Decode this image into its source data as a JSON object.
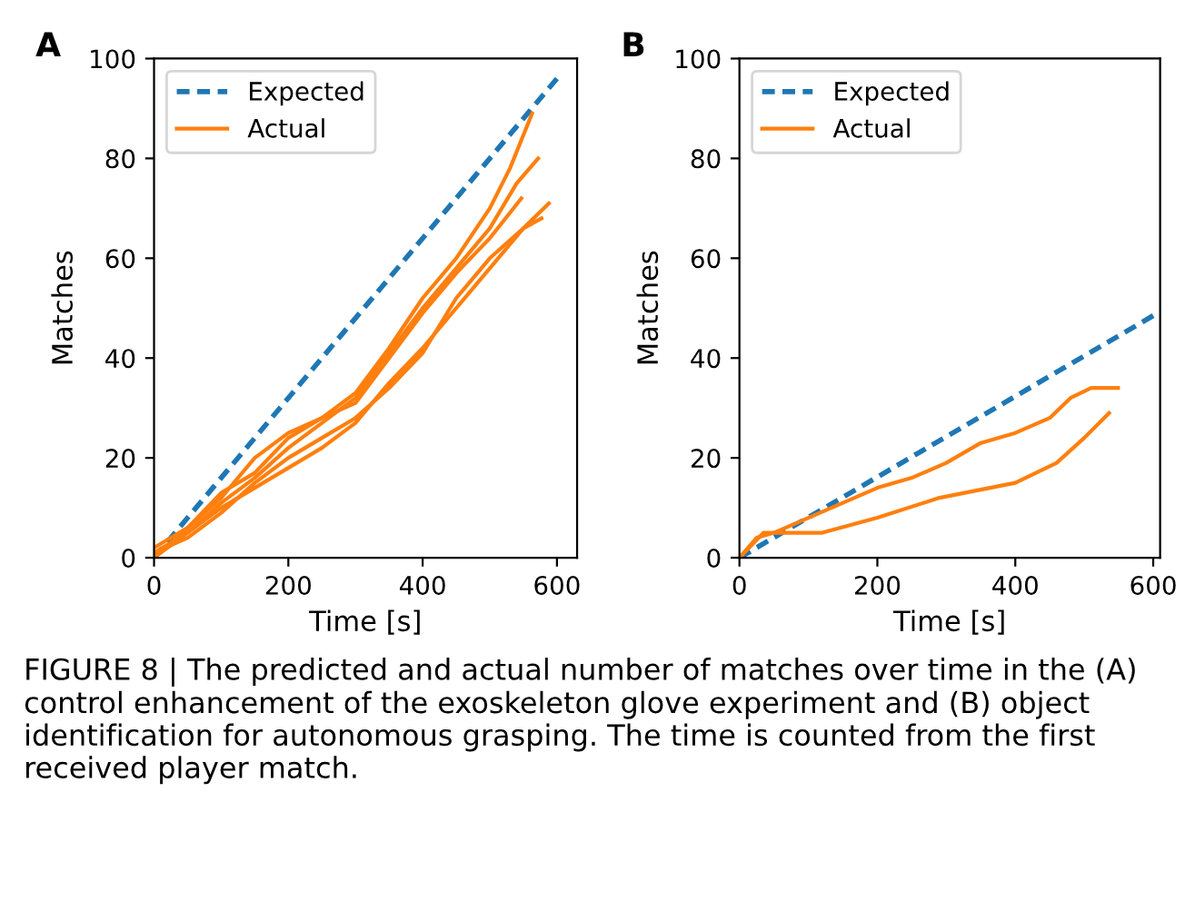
{
  "chart_data": [
    {
      "type": "line",
      "title": "A",
      "xlabel": "Time [s]",
      "ylabel": "Matches",
      "xlim": [
        0,
        630
      ],
      "ylim": [
        0,
        100
      ],
      "xticks": [
        0,
        200,
        400,
        600
      ],
      "yticks": [
        0,
        20,
        40,
        60,
        80,
        100
      ],
      "grid": false,
      "legend": "top left",
      "series": [
        {
          "name": "Expected",
          "color": "#1f77b4",
          "line_style": "dashed",
          "x": [
            0,
            600
          ],
          "values": [
            0,
            96
          ]
        },
        {
          "name": "Actual",
          "color": "#ff7f0e",
          "line_style": "solid",
          "x": [
            0,
            50,
            100,
            150,
            200,
            250,
            300,
            350,
            400,
            450,
            500,
            530,
            563
          ],
          "values": [
            0,
            6,
            12,
            20,
            25,
            28,
            33,
            42,
            52,
            60,
            70,
            78,
            89
          ]
        },
        {
          "color": "#ff7f0e",
          "line_style": "solid",
          "x": [
            0,
            50,
            100,
            150,
            200,
            250,
            300,
            350,
            400,
            450,
            500,
            540,
            572
          ],
          "values": [
            1,
            5,
            11,
            16,
            22,
            27,
            32,
            41,
            50,
            58,
            66,
            75,
            80
          ]
        },
        {
          "color": "#ff7f0e",
          "line_style": "solid",
          "x": [
            0,
            50,
            100,
            150,
            200,
            250,
            300,
            350,
            400,
            450,
            500,
            547
          ],
          "values": [
            2,
            6,
            13,
            17,
            24,
            28,
            31,
            40,
            49,
            57,
            64,
            72
          ]
        },
        {
          "color": "#ff7f0e",
          "line_style": "solid",
          "x": [
            0,
            50,
            100,
            150,
            200,
            250,
            300,
            350,
            400,
            450,
            500,
            550,
            588
          ],
          "values": [
            0,
            5,
            10,
            14,
            18,
            22,
            27,
            35,
            42,
            50,
            58,
            66,
            71
          ]
        },
        {
          "color": "#ff7f0e",
          "line_style": "solid",
          "x": [
            0,
            50,
            100,
            150,
            200,
            250,
            300,
            350,
            400,
            450,
            500,
            550,
            577
          ],
          "values": [
            1,
            4,
            9,
            15,
            20,
            24,
            28,
            34,
            41,
            52,
            60,
            66,
            68
          ]
        }
      ],
      "annotations": [
        "FIGURE 8 | The predicted and actual number of matches over time in the (A) control enhancement of the exoskeleton glove experiment and (B) object identification for autonomous grasping. The time is counted from the first received player match."
      ]
    },
    {
      "type": "line",
      "title": "B",
      "xlabel": "Time [s]",
      "ylabel": "Matches",
      "xlim": [
        0,
        610
      ],
      "ylim": [
        0,
        100
      ],
      "xticks": [
        0,
        200,
        400,
        600
      ],
      "yticks": [
        0,
        20,
        40,
        60,
        80,
        100
      ],
      "grid": false,
      "legend": "top left",
      "series": [
        {
          "name": "Expected",
          "color": "#1f77b4",
          "line_style": "dashed",
          "x": [
            0,
            600
          ],
          "values": [
            0,
            48.5
          ]
        },
        {
          "name": "Actual",
          "color": "#ff7f0e",
          "line_style": "solid",
          "x": [
            0,
            25,
            50,
            100,
            150,
            200,
            250,
            300,
            350,
            400,
            450,
            480,
            510,
            549
          ],
          "values": [
            0,
            4,
            5,
            8,
            11,
            14,
            16,
            19,
            23,
            25,
            28,
            32,
            34,
            34
          ]
        },
        {
          "color": "#ff7f0e",
          "line_style": "solid",
          "x": [
            0,
            35,
            120,
            200,
            290,
            400,
            460,
            500,
            536
          ],
          "values": [
            0,
            5,
            5,
            8,
            12,
            15,
            19,
            24,
            29
          ]
        }
      ]
    }
  ]
}
